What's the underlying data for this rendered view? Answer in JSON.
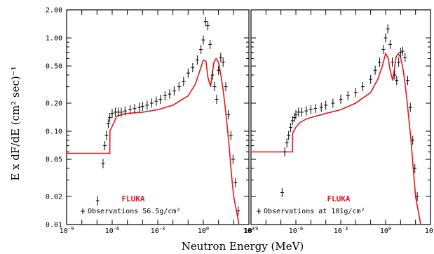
{
  "chart_data": {
    "type": "line",
    "xlabel": "Neutron Energy (MeV)",
    "ylabel": "E x dF/dE (cm² sec)⁻¹",
    "xscale": "log",
    "yscale": "log",
    "xlim": [
      1e-09,
      1000.0
    ],
    "ylim": [
      0.01,
      2.0
    ],
    "x_ticks": [
      {
        "value": 1e-09,
        "base": "10",
        "exp": "-9"
      },
      {
        "value": 1e-06,
        "base": "10",
        "exp": "-6"
      },
      {
        "value": 0.001,
        "base": "10",
        "exp": "-3"
      },
      {
        "value": 1,
        "base": "10",
        "exp": "0"
      },
      {
        "value": 1000.0,
        "base": "10",
        "exp": "3"
      }
    ],
    "y_ticks": [
      {
        "value": 0.01,
        "label": "0.01"
      },
      {
        "value": 0.02,
        "label": "0.02"
      },
      {
        "value": 0.05,
        "label": "0.05"
      },
      {
        "value": 0.1,
        "label": "0.10"
      },
      {
        "value": 0.2,
        "label": "0.20"
      },
      {
        "value": 0.5,
        "label": "0.50"
      },
      {
        "value": 1.0,
        "label": "1.00"
      },
      {
        "value": 2.0,
        "label": "2.00"
      }
    ],
    "colors": {
      "fluka": "#e4161d",
      "observations": "#000000"
    },
    "panels": [
      {
        "legend_fluka": "FLUKA",
        "legend_obs": "Observations 56.5g/cm²",
        "fluka": {
          "x": [
            1e-09,
            3e-09,
            1e-08,
            3e-08,
            1e-07,
            5e-07,
            7e-07,
            7.1e-07,
            2e-06,
            5e-06,
            1e-05,
            0.0001,
            0.001,
            0.01,
            0.1,
            0.3,
            0.6,
            1.0,
            1.5,
            2.0,
            3.0,
            4.0,
            5.0,
            7.0,
            10.0,
            15.0,
            20.0,
            30.0,
            50.0,
            70.0,
            100.0,
            200.0,
            400.0
          ],
          "y": [
            0.058,
            0.058,
            0.058,
            0.058,
            0.058,
            0.058,
            0.058,
            0.1,
            0.145,
            0.152,
            0.155,
            0.16,
            0.17,
            0.19,
            0.24,
            0.32,
            0.45,
            0.58,
            0.56,
            0.38,
            0.3,
            0.42,
            0.55,
            0.6,
            0.55,
            0.38,
            0.28,
            0.16,
            0.07,
            0.035,
            0.02,
            0.011,
            0.005
          ]
        },
        "observations": {
          "x": [
            1.1e-07,
            2.5e-07,
            3.3e-07,
            4.2e-07,
            5.5e-07,
            7e-07,
            1e-06,
            1.6e-06,
            2.5e-06,
            4e-06,
            7e-06,
            1.5e-05,
            3e-05,
            6e-05,
            0.0001,
            0.0002,
            0.0004,
            0.0008,
            0.0015,
            0.003,
            0.006,
            0.012,
            0.025,
            0.05,
            0.1,
            0.2,
            0.4,
            0.7,
            1.0,
            1.4,
            2.0,
            2.8,
            4.0,
            5.5,
            7.5,
            10.0,
            14.0,
            20.0,
            30.0,
            45.0,
            65.0,
            90.0,
            130.0,
            200.0
          ],
          "y": [
            0.018,
            0.045,
            0.07,
            0.09,
            0.12,
            0.14,
            0.155,
            0.16,
            0.16,
            0.16,
            0.165,
            0.17,
            0.175,
            0.18,
            0.185,
            0.19,
            0.2,
            0.21,
            0.22,
            0.24,
            0.25,
            0.27,
            0.3,
            0.34,
            0.42,
            0.48,
            0.58,
            0.75,
            0.95,
            1.5,
            1.35,
            0.85,
            0.4,
            0.3,
            0.22,
            0.45,
            0.62,
            0.55,
            0.3,
            0.15,
            0.09,
            0.05,
            0.028,
            0.014
          ]
        }
      },
      {
        "legend_fluka": "FLUKA",
        "legend_obs": "Observations at 101g/cm²",
        "fluka": {
          "x": [
            1e-09,
            3e-09,
            1e-08,
            3e-08,
            1e-07,
            4e-07,
            6e-07,
            6.1e-07,
            1e-06,
            2e-06,
            5e-06,
            1e-05,
            0.0001,
            0.001,
            0.01,
            0.1,
            0.3,
            0.6,
            1.0,
            1.5,
            2.0,
            3.0,
            4.0,
            5.0,
            7.0,
            10.0,
            15.0,
            20.0,
            30.0,
            50.0,
            70.0,
            100.0,
            200.0,
            400.0
          ],
          "y": [
            0.06,
            0.06,
            0.06,
            0.06,
            0.06,
            0.06,
            0.06,
            0.095,
            0.11,
            0.125,
            0.135,
            0.14,
            0.155,
            0.17,
            0.2,
            0.26,
            0.36,
            0.5,
            0.68,
            0.6,
            0.45,
            0.35,
            0.48,
            0.62,
            0.68,
            0.62,
            0.45,
            0.32,
            0.18,
            0.08,
            0.04,
            0.02,
            0.011,
            0.005
          ]
        },
        "observations": {
          "x": [
            1.2e-07,
            1.8e-07,
            2.5e-07,
            3.3e-07,
            4.5e-07,
            6e-07,
            8e-07,
            1e-06,
            1.5e-06,
            2.5e-06,
            5e-06,
            1e-05,
            2e-05,
            5e-05,
            0.0001,
            0.0003,
            0.001,
            0.003,
            0.01,
            0.03,
            0.1,
            0.2,
            0.4,
            0.7,
            1.0,
            1.4,
            2.0,
            2.8,
            4.0,
            5.5,
            7.5,
            10.0,
            14.0,
            20.0,
            30.0,
            45.0,
            65.0,
            90.0,
            130.0
          ],
          "y": [
            0.022,
            0.06,
            0.075,
            0.09,
            0.11,
            0.13,
            0.14,
            0.15,
            0.16,
            0.16,
            0.165,
            0.17,
            0.175,
            0.18,
            0.19,
            0.2,
            0.22,
            0.24,
            0.26,
            0.3,
            0.36,
            0.45,
            0.55,
            0.75,
            1.0,
            1.25,
            0.85,
            0.55,
            0.4,
            0.35,
            0.55,
            0.7,
            0.72,
            0.62,
            0.35,
            0.18,
            0.08,
            0.04,
            0.02
          ]
        }
      }
    ]
  }
}
